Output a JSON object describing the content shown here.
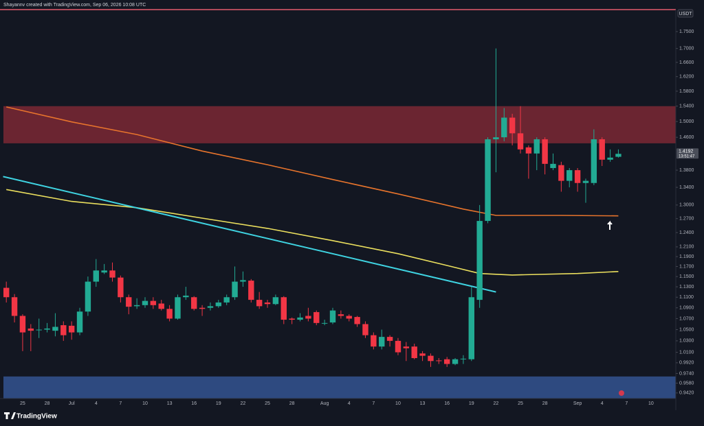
{
  "chart_data": {
    "type": "candlestick",
    "attribution": "Shayannv created with TradingView.com, Sep 06, 2026 10:08 UTC",
    "currency": "USDT",
    "brand": "TradingView",
    "countdown": "13:51:47",
    "log_scale": true,
    "grid": false,
    "up_color": "#22ab94",
    "down_color": "#f23645",
    "categories": [
      null,
      null,
      "25",
      null,
      null,
      "28",
      null,
      null,
      "Jul",
      null,
      null,
      "4",
      null,
      null,
      "7",
      null,
      null,
      "10",
      null,
      null,
      "13",
      null,
      null,
      "16",
      null,
      null,
      "19",
      null,
      null,
      "22",
      null,
      null,
      "25",
      null,
      null,
      "28",
      null,
      null,
      null,
      "Aug",
      null,
      null,
      "4",
      null,
      null,
      "7",
      null,
      null,
      "10",
      null,
      null,
      "13",
      null,
      null,
      "16",
      null,
      null,
      "19",
      null,
      null,
      "22",
      null,
      null,
      "25",
      null,
      null,
      "28",
      null,
      null,
      null,
      "Sep",
      null,
      null,
      "4",
      null,
      null,
      "7",
      null,
      null,
      "10"
    ],
    "open": [
      1.128,
      1.11,
      1.075,
      1.052,
      1.05,
      1.05,
      1.048,
      1.058,
      1.057,
      1.045,
      1.083,
      1.14,
      1.158,
      1.162,
      1.148,
      1.11,
      1.093,
      1.095,
      1.103,
      1.098,
      1.088,
      1.07,
      1.11,
      1.11,
      1.09,
      1.09,
      1.093,
      1.1,
      1.11,
      1.14,
      1.142,
      1.105,
      1.1,
      1.097,
      1.11,
      1.07,
      1.068,
      1.075,
      1.082,
      1.062,
      1.063,
      1.078,
      1.075,
      1.073,
      1.06,
      1.04,
      1.02,
      1.037,
      1.03,
      1.02,
      1.02,
      1.008,
      1.004,
      0.996,
      0.998,
      0.99,
      0.998,
      0.998,
      1.105,
      1.265,
      1.455,
      1.46,
      1.51,
      1.47,
      1.435,
      1.42,
      1.455,
      1.385,
      1.392,
      1.355,
      1.38,
      1.35,
      1.35,
      1.455,
      1.405,
      1.412,
      null,
      null,
      null,
      null
    ],
    "high": [
      1.14,
      1.116,
      1.078,
      1.06,
      1.07,
      1.062,
      1.08,
      1.065,
      1.065,
      1.09,
      1.15,
      1.185,
      1.175,
      1.178,
      1.152,
      1.115,
      1.108,
      1.11,
      1.11,
      1.105,
      1.095,
      1.115,
      1.13,
      1.112,
      1.095,
      1.1,
      1.105,
      1.115,
      1.17,
      1.16,
      1.145,
      1.12,
      1.105,
      1.115,
      1.112,
      1.072,
      1.08,
      1.09,
      1.085,
      1.068,
      1.09,
      1.085,
      1.078,
      1.075,
      1.065,
      1.045,
      1.05,
      1.04,
      1.035,
      1.028,
      1.025,
      1.012,
      1.008,
      1.0,
      1.002,
      1.0,
      1.005,
      1.13,
      1.3,
      1.46,
      1.7,
      1.535,
      1.52,
      1.54,
      1.44,
      1.46,
      1.46,
      1.42,
      1.4,
      1.385,
      1.385,
      1.36,
      1.48,
      1.46,
      1.43,
      1.43,
      null,
      null,
      null,
      null
    ],
    "low": [
      1.1,
      1.063,
      1.012,
      1.012,
      1.035,
      1.045,
      1.038,
      1.03,
      1.032,
      1.04,
      1.075,
      1.13,
      1.155,
      1.14,
      1.1,
      1.078,
      1.088,
      1.09,
      1.088,
      1.085,
      1.065,
      1.068,
      1.105,
      1.085,
      1.075,
      1.085,
      1.09,
      1.095,
      1.105,
      1.13,
      1.1,
      1.088,
      1.09,
      1.095,
      1.06,
      1.06,
      1.065,
      1.065,
      1.058,
      1.058,
      1.06,
      1.07,
      1.065,
      1.055,
      1.035,
      1.015,
      1.015,
      1.02,
      1.005,
      0.995,
      0.998,
      0.995,
      0.985,
      0.99,
      0.985,
      0.988,
      0.99,
      0.995,
      1.09,
      1.26,
      1.375,
      1.45,
      1.44,
      1.42,
      1.36,
      1.38,
      1.37,
      1.38,
      1.33,
      1.34,
      1.33,
      1.305,
      1.345,
      1.39,
      1.4,
      1.41,
      null,
      null,
      null,
      null
    ],
    "close": [
      1.11,
      1.075,
      1.045,
      1.048,
      1.05,
      1.052,
      1.055,
      1.04,
      1.045,
      1.083,
      1.14,
      1.162,
      1.162,
      1.148,
      1.11,
      1.092,
      1.095,
      1.103,
      1.095,
      1.088,
      1.07,
      1.11,
      1.113,
      1.088,
      1.088,
      1.093,
      1.1,
      1.11,
      1.14,
      1.143,
      1.105,
      1.093,
      1.097,
      1.11,
      1.068,
      1.068,
      1.072,
      1.07,
      1.062,
      1.062,
      1.085,
      1.075,
      1.07,
      1.06,
      1.04,
      1.02,
      1.037,
      1.03,
      1.01,
      1.017,
      1.0,
      1.004,
      0.995,
      0.995,
      0.99,
      0.998,
      0.999,
      1.11,
      1.265,
      1.455,
      1.46,
      1.51,
      1.47,
      1.43,
      1.42,
      1.455,
      1.395,
      1.395,
      1.355,
      1.38,
      1.35,
      1.355,
      1.455,
      1.405,
      1.41,
      1.4192,
      null,
      null,
      null,
      null
    ],
    "zones": [
      {
        "from": 1.445,
        "to": 1.54,
        "color": "#6b2531"
      },
      {
        "from": 0.933,
        "to": 0.969,
        "color": "#2e4a80"
      }
    ],
    "overlays": [
      {
        "color": "#e8742c",
        "x": [
          0,
          8,
          16,
          24,
          32,
          40,
          48,
          56,
          60,
          68,
          75
        ],
        "values": [
          1.538,
          1.499,
          1.467,
          1.426,
          1.393,
          1.358,
          1.325,
          1.291,
          1.277,
          1.277,
          1.276
        ]
      },
      {
        "color": "#ece05e",
        "x": [
          0,
          8,
          16,
          24,
          32,
          40,
          48,
          54,
          58,
          62,
          70,
          75
        ],
        "values": [
          1.335,
          1.308,
          1.294,
          1.271,
          1.249,
          1.223,
          1.196,
          1.172,
          1.156,
          1.153,
          1.156,
          1.16
        ]
      },
      {
        "color": "#3fd4e2",
        "x": [
          -0.4,
          60
        ],
        "values": [
          1.365,
          1.12
        ]
      }
    ],
    "ylim": [
      0.933,
      1.815
    ],
    "yticks": [
      {
        "value": 1.75,
        "label": "1.7500"
      },
      {
        "value": 1.7,
        "label": "1.7000"
      },
      {
        "value": 1.66,
        "label": "1.6600"
      },
      {
        "value": 1.62,
        "label": "1.6200"
      },
      {
        "value": 1.58,
        "label": "1.5800"
      },
      {
        "value": 1.54,
        "label": "1.5400"
      },
      {
        "value": 1.5,
        "label": "1.5000"
      },
      {
        "value": 1.46,
        "label": "1.4600"
      },
      {
        "value": 1.38,
        "label": "1.3800"
      },
      {
        "value": 1.34,
        "label": "1.3400"
      },
      {
        "value": 1.3,
        "label": "1.3000"
      },
      {
        "value": 1.27,
        "label": "1.2700"
      },
      {
        "value": 1.24,
        "label": "1.2400"
      },
      {
        "value": 1.21,
        "label": "1.2100"
      },
      {
        "value": 1.19,
        "label": "1.1900"
      },
      {
        "value": 1.17,
        "label": "1.1700"
      },
      {
        "value": 1.15,
        "label": "1.1500"
      },
      {
        "value": 1.13,
        "label": "1.1300"
      },
      {
        "value": 1.11,
        "label": "1.1100"
      },
      {
        "value": 1.09,
        "label": "1.0900"
      },
      {
        "value": 1.07,
        "label": "1.0700"
      },
      {
        "value": 1.05,
        "label": "1.0500"
      },
      {
        "value": 1.03,
        "label": "1.0300"
      },
      {
        "value": 1.01,
        "label": "1.0100"
      },
      {
        "value": 0.992,
        "label": "0.9920"
      },
      {
        "value": 0.974,
        "label": "0.9740"
      },
      {
        "value": 0.958,
        "label": "0.9580"
      },
      {
        "value": 0.942,
        "label": "0.9420"
      }
    ]
  }
}
